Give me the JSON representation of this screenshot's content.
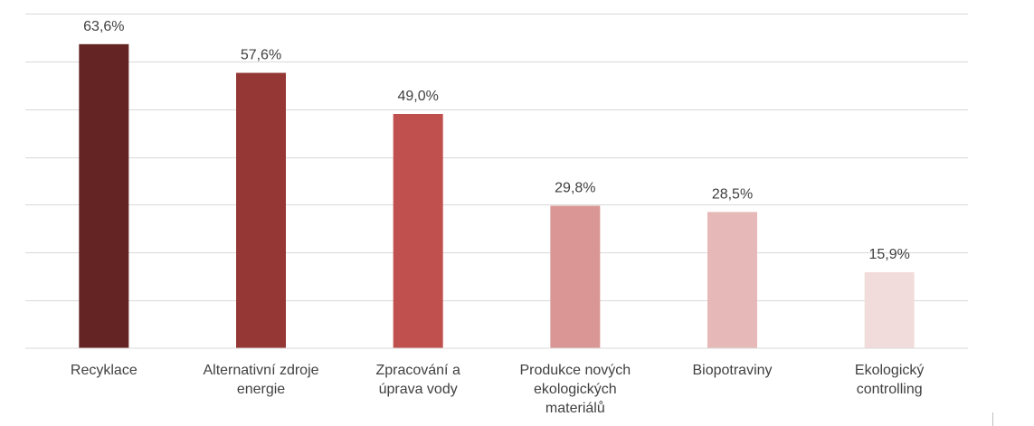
{
  "chart_data": {
    "type": "bar",
    "title": "",
    "xlabel": "",
    "ylabel": "",
    "categories": [
      "Recyklace",
      "Alternativní zdroje energie",
      "Zpracování a úprava vody",
      "Produkce nových ekologických materiálů",
      "Biopotraviny",
      "Ekologický controlling"
    ],
    "category_lines": [
      [
        "Recyklace"
      ],
      [
        "Alternativní zdroje",
        "energie"
      ],
      [
        "Zpracování a",
        "úprava vody"
      ],
      [
        "Produkce nových",
        "ekologických",
        "materiálů"
      ],
      [
        "Biopotraviny"
      ],
      [
        "Ekologický",
        "controlling"
      ]
    ],
    "values": [
      63.6,
      57.6,
      49.0,
      29.8,
      28.5,
      15.9
    ],
    "data_labels": [
      "63,6%",
      "57,6%",
      "49,0%",
      "29,8%",
      "28,5%",
      "15,9%"
    ],
    "colors": [
      "#632423",
      "#953735",
      "#c0504d",
      "#d99694",
      "#e6b9b8",
      "#f2dcdb"
    ],
    "ylim": [
      0,
      70
    ],
    "gridlines": true,
    "y_tick_labels_shown": false,
    "legend": "none"
  }
}
